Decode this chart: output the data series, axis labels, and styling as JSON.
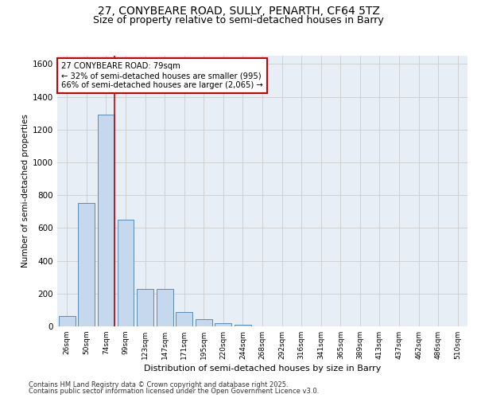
{
  "title1": "27, CONYBEARE ROAD, SULLY, PENARTH, CF64 5TZ",
  "title2": "Size of property relative to semi-detached houses in Barry",
  "xlabel": "Distribution of semi-detached houses by size in Barry",
  "ylabel": "Number of semi-detached properties",
  "categories": [
    "26sqm",
    "50sqm",
    "74sqm",
    "99sqm",
    "123sqm",
    "147sqm",
    "171sqm",
    "195sqm",
    "220sqm",
    "244sqm",
    "268sqm",
    "292sqm",
    "316sqm",
    "341sqm",
    "365sqm",
    "389sqm",
    "413sqm",
    "437sqm",
    "462sqm",
    "486sqm",
    "510sqm"
  ],
  "values": [
    65,
    750,
    1290,
    650,
    230,
    230,
    85,
    45,
    20,
    10,
    0,
    0,
    0,
    0,
    0,
    0,
    0,
    0,
    0,
    0,
    0
  ],
  "bar_color": "#c5d8ed",
  "bar_edge_color": "#5a8ab5",
  "red_line_idx": 2,
  "annotation_line1": "27 CONYBEARE ROAD: 79sqm",
  "annotation_line2": "← 32% of semi-detached houses are smaller (995)",
  "annotation_line3": "66% of semi-detached houses are larger (2,065) →",
  "annotation_box_color": "#ffffff",
  "annotation_box_edge": "#cc0000",
  "ylim": [
    0,
    1650
  ],
  "yticks": [
    0,
    200,
    400,
    600,
    800,
    1000,
    1200,
    1400,
    1600
  ],
  "grid_color": "#cccccc",
  "bg_color": "#e8eef6",
  "footer_left": "Contains HM Land Registry data © Crown copyright and database right 2025.",
  "footer_right": "Contains public sector information licensed under the Open Government Licence v3.0.",
  "title1_fontsize": 10,
  "title2_fontsize": 9
}
